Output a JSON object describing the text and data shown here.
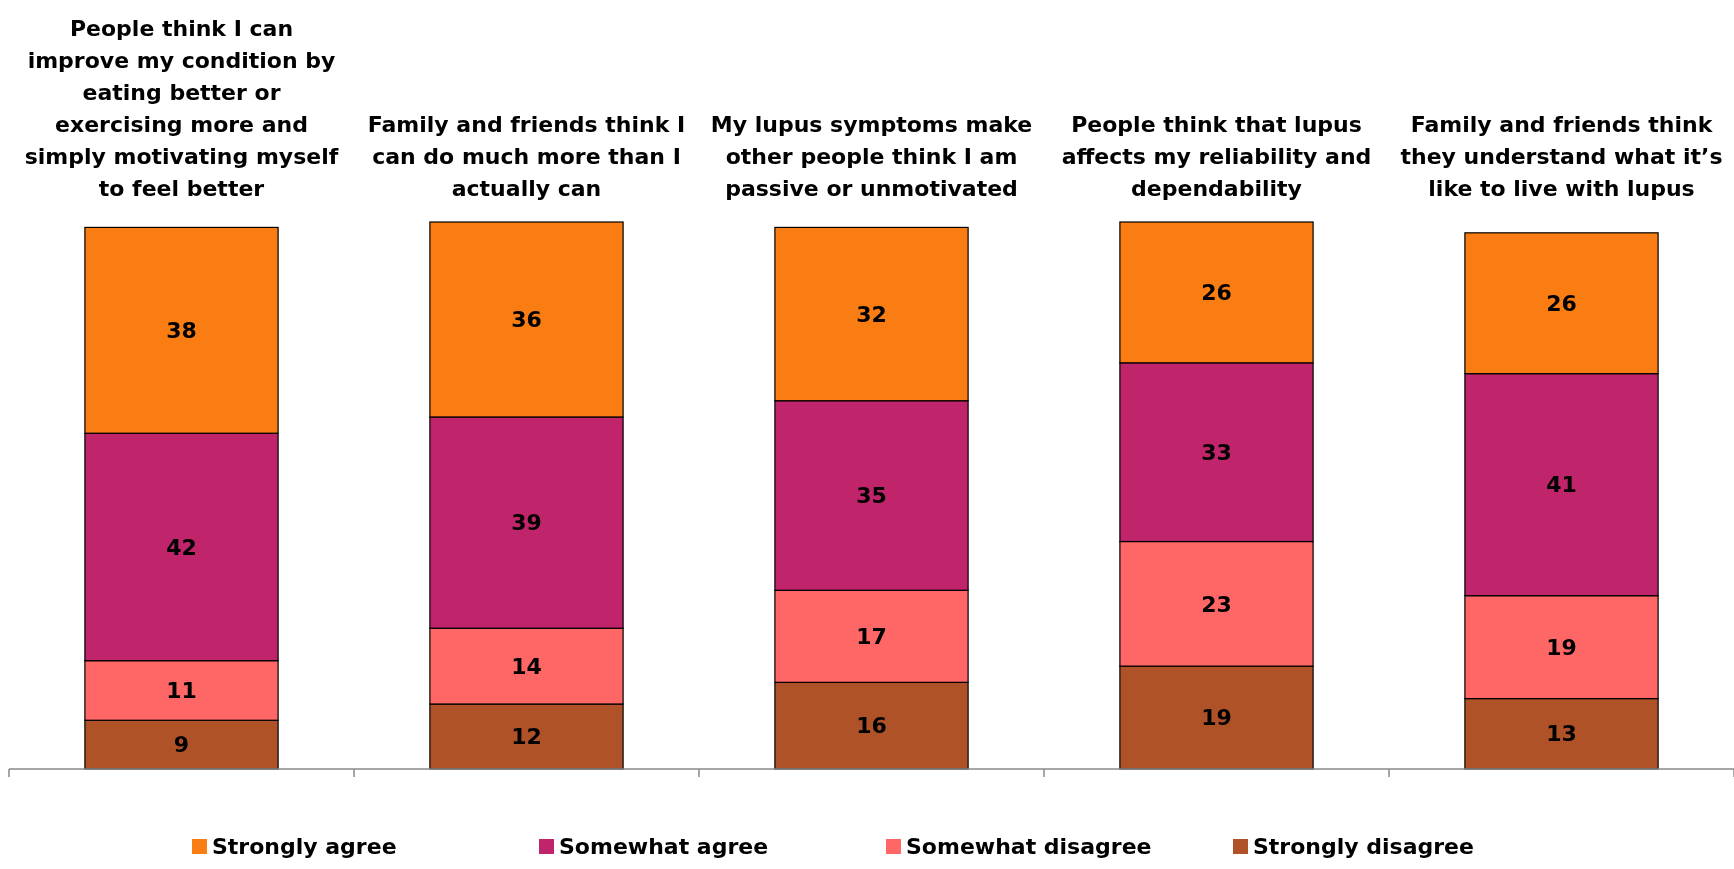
{
  "chart_data": {
    "type": "bar",
    "stacked": true,
    "data_labels": true,
    "legend": "bottom",
    "categories": [
      "People think I can improve my condition by eating better or exercising more and simply motivating myself to feel better",
      "Family and friends think I can do much more than I actually can",
      "My lupus symptoms make other people think I am passive or unmotivated",
      "People think that lupus affects my reliability and dependability",
      "Family and friends think they understand what it’s like to live with lupus"
    ],
    "series": [
      {
        "name": "Strongly disagree",
        "color": "#b05228",
        "values": [
          9,
          12,
          16,
          19,
          13
        ]
      },
      {
        "name": "Somewhat disagree",
        "color": "#ff6666",
        "values": [
          11,
          14,
          17,
          23,
          19
        ]
      },
      {
        "name": "Somewhat agree",
        "color": "#c0246a",
        "values": [
          42,
          39,
          35,
          33,
          41
        ]
      },
      {
        "name": "Strongly agree",
        "color": "#f97d12",
        "values": [
          38,
          36,
          32,
          26,
          26
        ]
      }
    ]
  }
}
